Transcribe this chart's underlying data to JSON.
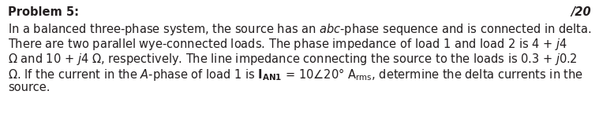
{
  "bg_color": "#ffffff",
  "text_color": "#231f20",
  "title_bold": "Problem 5:",
  "title_right": "/20",
  "line1": "In a balanced three-phase system, the source has an $\\mathit{abc}$-phase sequence and is connected in delta.",
  "line2": "There are two parallel wye-connected loads. The phase impedance of load 1 and load 2 is 4 + $\\mathit{j}$4",
  "line3": "Ω and 10 + $\\mathit{j}$4 Ω, respectively. The line impedance connecting the source to the loads is 0.3 + $\\mathit{j}$0.2",
  "line4": "Ω. If the current in the $\\mathit{A}$-phase of load 1 is $\\mathbf{I_{AN1}}$ = 10∠20° A$_{\\mathrm{rms}}$, determine the delta currents in the",
  "line5": "source.",
  "font_size": 10.5,
  "fig_width": 7.59,
  "fig_height": 1.67,
  "dpi": 100
}
